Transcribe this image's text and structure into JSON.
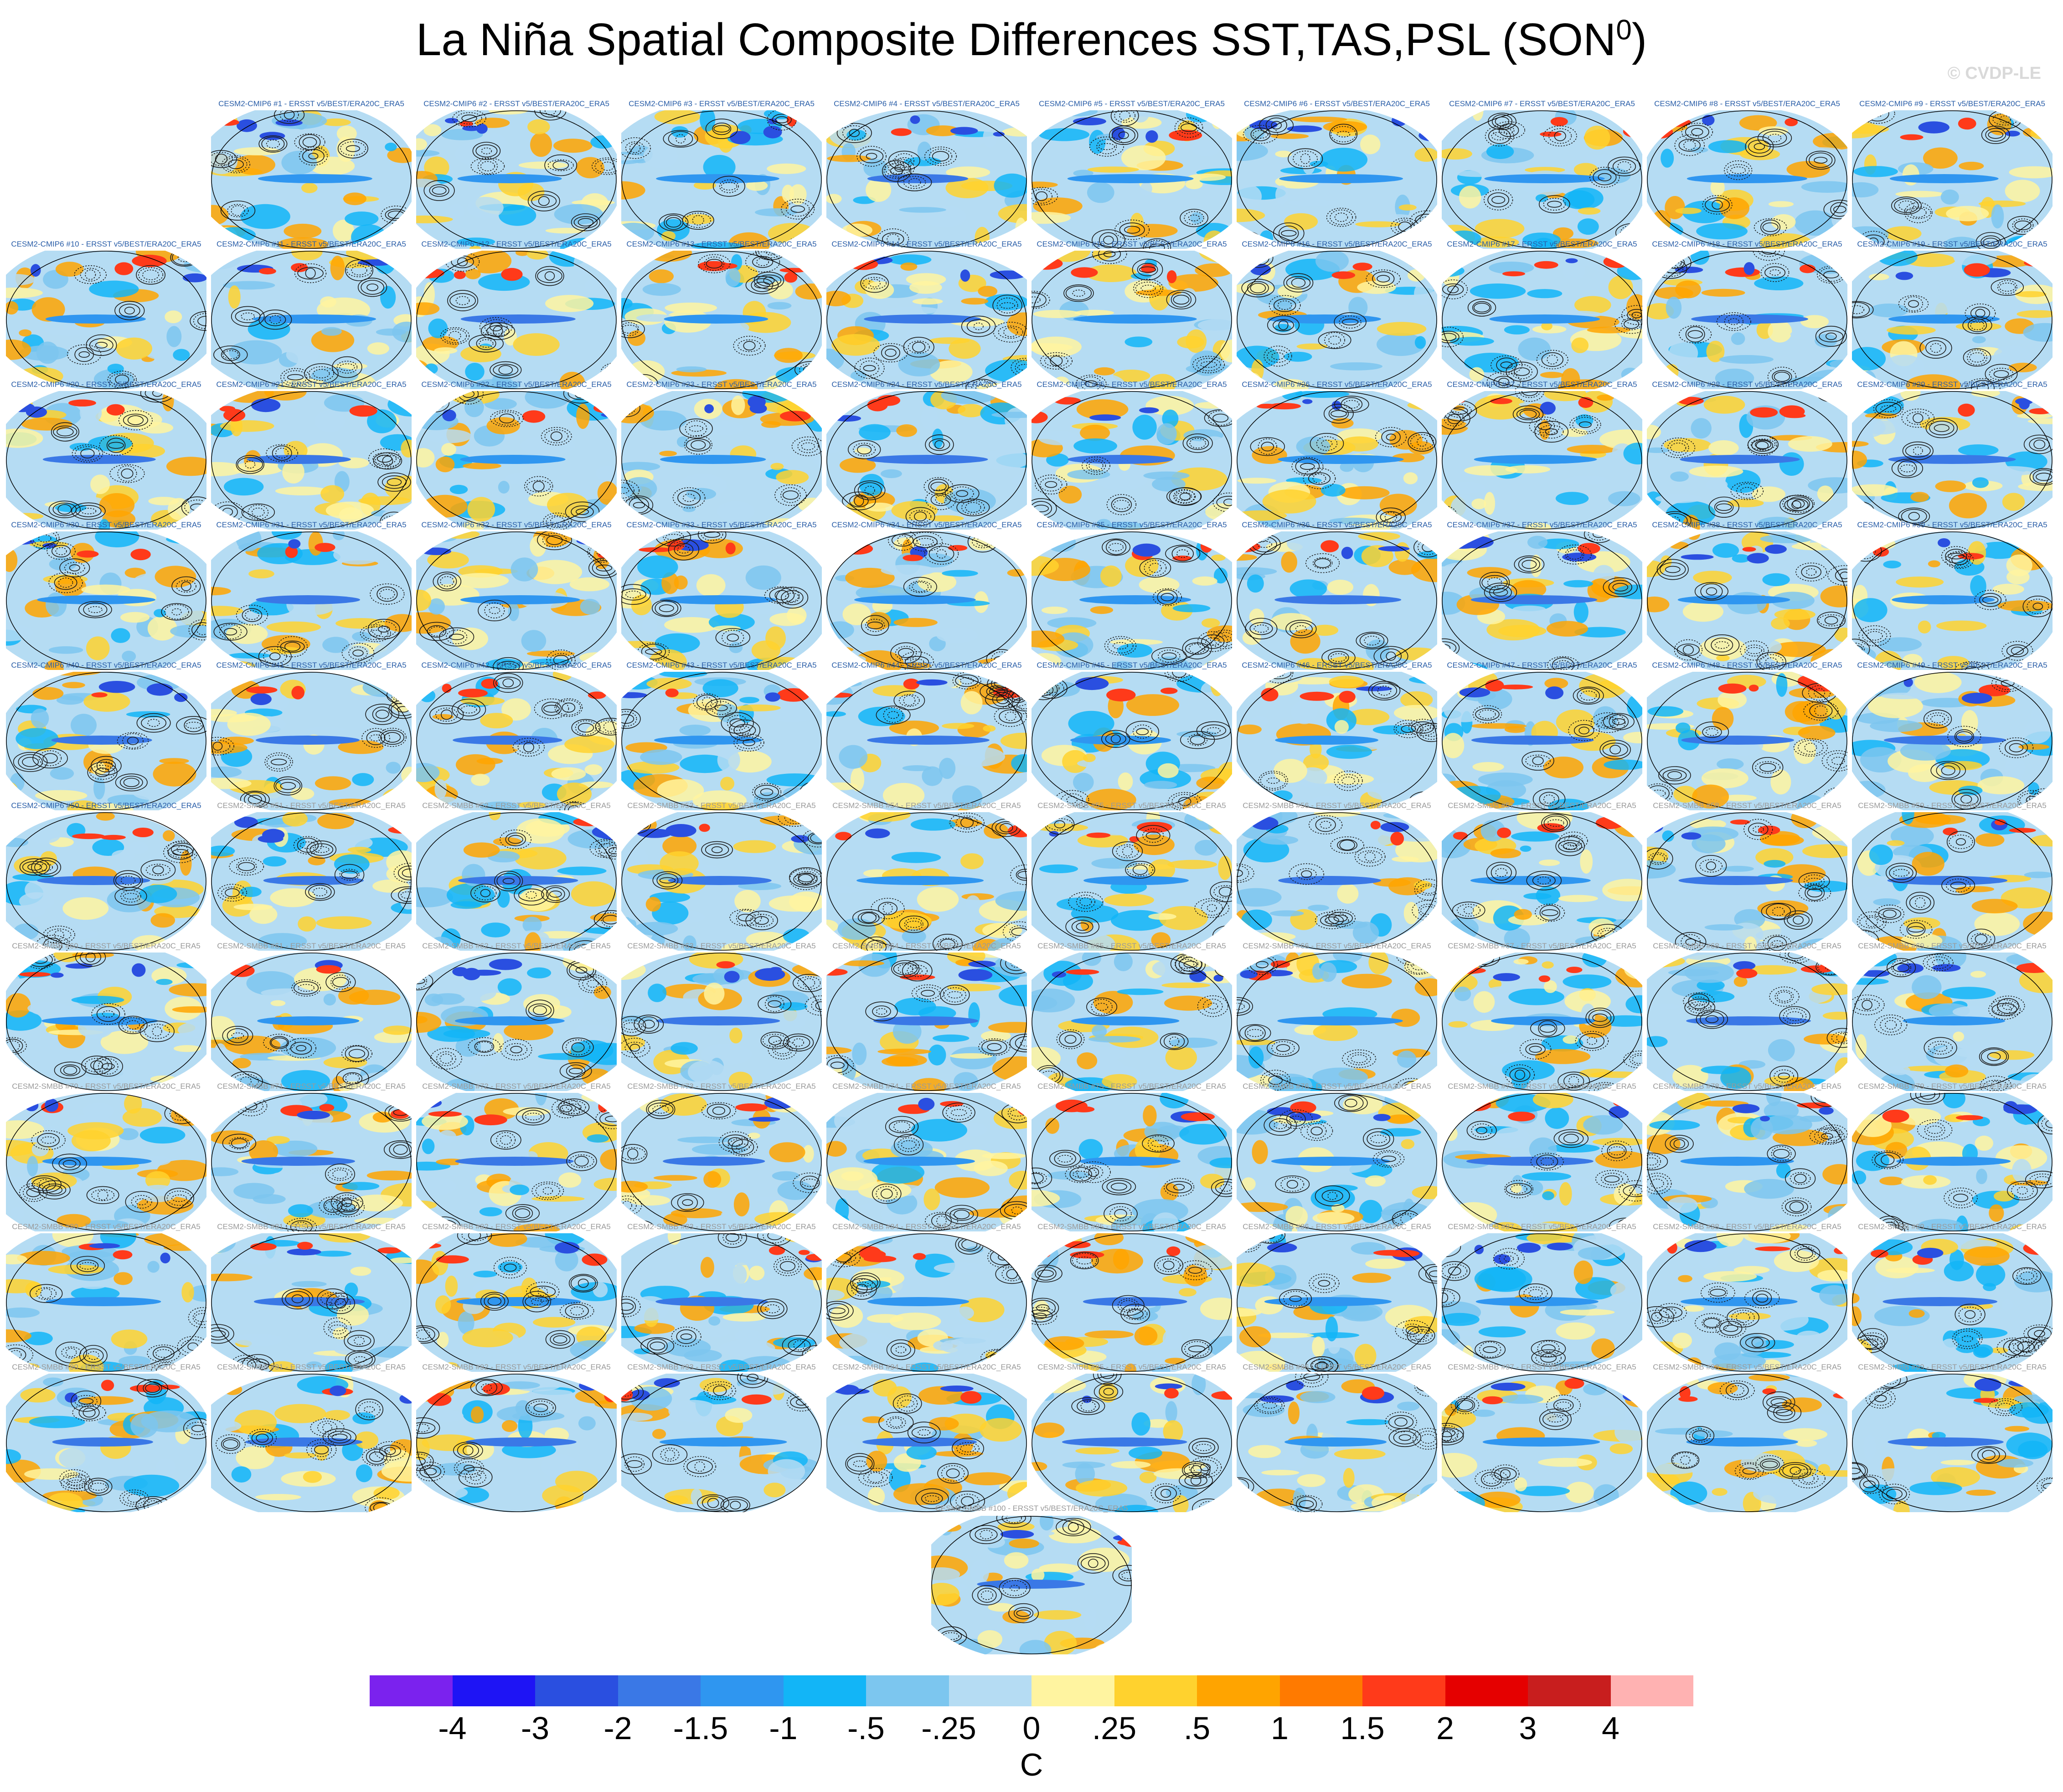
{
  "title_main": "La Niña Spatial Composite Differences SST,TAS,PSL (SON",
  "title_sup": "0",
  "title_end": ")",
  "copyright": "© CVDP-LE",
  "chart_data": {
    "type": "heatmap",
    "projection": "global map (Robinson-like ellipse)",
    "fields": [
      "SST",
      "TAS",
      "PSL (contours)"
    ],
    "season": "SON0",
    "units": "C",
    "panels_cmip6": [
      "CESM2-CMIP6 #1 - ERSST v5/BEST/ERA20C_ERA5",
      "CESM2-CMIP6 #2 - ERSST v5/BEST/ERA20C_ERA5",
      "CESM2-CMIP6 #3 - ERSST v5/BEST/ERA20C_ERA5",
      "CESM2-CMIP6 #4 - ERSST v5/BEST/ERA20C_ERA5",
      "CESM2-CMIP6 #5 - ERSST v5/BEST/ERA20C_ERA5",
      "CESM2-CMIP6 #6 - ERSST v5/BEST/ERA20C_ERA5",
      "CESM2-CMIP6 #7 - ERSST v5/BEST/ERA20C_ERA5",
      "CESM2-CMIP6 #8 - ERSST v5/BEST/ERA20C_ERA5",
      "CESM2-CMIP6 #9 - ERSST v5/BEST/ERA20C_ERA5",
      "CESM2-CMIP6 #10 - ERSST v5/BEST/ERA20C_ERA5",
      "CESM2-CMIP6 #11 - ERSST v5/BEST/ERA20C_ERA5",
      "CESM2-CMIP6 #12 - ERSST v5/BEST/ERA20C_ERA5",
      "CESM2-CMIP6 #13 - ERSST v5/BEST/ERA20C_ERA5",
      "CESM2-CMIP6 #14 - ERSST v5/BEST/ERA20C_ERA5",
      "CESM2-CMIP6 #15 - ERSST v5/BEST/ERA20C_ERA5",
      "CESM2-CMIP6 #16 - ERSST v5/BEST/ERA20C_ERA5",
      "CESM2-CMIP6 #17 - ERSST v5/BEST/ERA20C_ERA5",
      "CESM2-CMIP6 #18 - ERSST v5/BEST/ERA20C_ERA5",
      "CESM2-CMIP6 #19 - ERSST v5/BEST/ERA20C_ERA5",
      "CESM2-CMIP6 #20 - ERSST v5/BEST/ERA20C_ERA5",
      "CESM2-CMIP6 #21 - ERSST v5/BEST/ERA20C_ERA5",
      "CESM2-CMIP6 #22 - ERSST v5/BEST/ERA20C_ERA5",
      "CESM2-CMIP6 #23 - ERSST v5/BEST/ERA20C_ERA5",
      "CESM2-CMIP6 #24 - ERSST v5/BEST/ERA20C_ERA5",
      "CESM2-CMIP6 #25 - ERSST v5/BEST/ERA20C_ERA5",
      "CESM2-CMIP6 #26 - ERSST v5/BEST/ERA20C_ERA5",
      "CESM2-CMIP6 #27 - ERSST v5/BEST/ERA20C_ERA5",
      "CESM2-CMIP6 #28 - ERSST v5/BEST/ERA20C_ERA5",
      "CESM2-CMIP6 #29 - ERSST v5/BEST/ERA20C_ERA5",
      "CESM2-CMIP6 #30 - ERSST v5/BEST/ERA20C_ERA5",
      "CESM2-CMIP6 #31 - ERSST v5/BEST/ERA20C_ERA5",
      "CESM2-CMIP6 #32 - ERSST v5/BEST/ERA20C_ERA5",
      "CESM2-CMIP6 #33 - ERSST v5/BEST/ERA20C_ERA5",
      "CESM2-CMIP6 #34 - ERSST v5/BEST/ERA20C_ERA5",
      "CESM2-CMIP6 #35 - ERSST v5/BEST/ERA20C_ERA5",
      "CESM2-CMIP6 #36 - ERSST v5/BEST/ERA20C_ERA5",
      "CESM2-CMIP6 #37 - ERSST v5/BEST/ERA20C_ERA5",
      "CESM2-CMIP6 #38 - ERSST v5/BEST/ERA20C_ERA5",
      "CESM2-CMIP6 #39 - ERSST v5/BEST/ERA20C_ERA5",
      "CESM2-CMIP6 #40 - ERSST v5/BEST/ERA20C_ERA5",
      "CESM2-CMIP6 #41 - ERSST v5/BEST/ERA20C_ERA5",
      "CESM2-CMIP6 #42 - ERSST v5/BEST/ERA20C_ERA5",
      "CESM2-CMIP6 #43 - ERSST v5/BEST/ERA20C_ERA5",
      "CESM2-CMIP6 #44 - ERSST v5/BEST/ERA20C_ERA5",
      "CESM2-CMIP6 #45 - ERSST v5/BEST/ERA20C_ERA5",
      "CESM2-CMIP6 #46 - ERSST v5/BEST/ERA20C_ERA5",
      "CESM2-CMIP6 #47 - ERSST v5/BEST/ERA20C_ERA5",
      "CESM2-CMIP6 #48 - ERSST v5/BEST/ERA20C_ERA5",
      "CESM2-CMIP6 #49 - ERSST v5/BEST/ERA20C_ERA5",
      "CESM2-CMIP6 #50 - ERSST v5/BEST/ERA20C_ERA5"
    ],
    "panels_smbb": [
      "CESM2-SMBB #51 - ERSST v5/BEST/ERA20C_ERA5",
      "CESM2-SMBB #52 - ERSST v5/BEST/ERA20C_ERA5",
      "CESM2-SMBB #53 - ERSST v5/BEST/ERA20C_ERA5",
      "CESM2-SMBB #54 - ERSST v5/BEST/ERA20C_ERA5",
      "CESM2-SMBB #55 - ERSST v5/BEST/ERA20C_ERA5",
      "CESM2-SMBB #56 - ERSST v5/BEST/ERA20C_ERA5",
      "CESM2-SMBB #57 - ERSST v5/BEST/ERA20C_ERA5",
      "CESM2-SMBB #58 - ERSST v5/BEST/ERA20C_ERA5",
      "CESM2-SMBB #59 - ERSST v5/BEST/ERA20C_ERA5",
      "CESM2-SMBB #60 - ERSST v5/BEST/ERA20C_ERA5",
      "CESM2-SMBB #61 - ERSST v5/BEST/ERA20C_ERA5",
      "CESM2-SMBB #62 - ERSST v5/BEST/ERA20C_ERA5",
      "CESM2-SMBB #63 - ERSST v5/BEST/ERA20C_ERA5",
      "CESM2-SMBB #64 - ERSST v5/BEST/ERA20C_ERA5",
      "CESM2-SMBB #65 - ERSST v5/BEST/ERA20C_ERA5",
      "CESM2-SMBB #66 - ERSST v5/BEST/ERA20C_ERA5",
      "CESM2-SMBB #67 - ERSST v5/BEST/ERA20C_ERA5",
      "CESM2-SMBB #68 - ERSST v5/BEST/ERA20C_ERA5",
      "CESM2-SMBB #69 - ERSST v5/BEST/ERA20C_ERA5",
      "CESM2-SMBB #70 - ERSST v5/BEST/ERA20C_ERA5",
      "CESM2-SMBB #71 - ERSST v5/BEST/ERA20C_ERA5",
      "CESM2-SMBB #72 - ERSST v5/BEST/ERA20C_ERA5",
      "CESM2-SMBB #73 - ERSST v5/BEST/ERA20C_ERA5",
      "CESM2-SMBB #74 - ERSST v5/BEST/ERA20C_ERA5",
      "CESM2-SMBB #75 - ERSST v5/BEST/ERA20C_ERA5",
      "CESM2-SMBB #76 - ERSST v5/BEST/ERA20C_ERA5",
      "CESM2-SMBB #77 - ERSST v5/BEST/ERA20C_ERA5",
      "CESM2-SMBB #78 - ERSST v5/BEST/ERA20C_ERA5",
      "CESM2-SMBB #79 - ERSST v5/BEST/ERA20C_ERA5",
      "CESM2-SMBB #80 - ERSST v5/BEST/ERA20C_ERA5",
      "CESM2-SMBB #81 - ERSST v5/BEST/ERA20C_ERA5",
      "CESM2-SMBB #82 - ERSST v5/BEST/ERA20C_ERA5",
      "CESM2-SMBB #83 - ERSST v5/BEST/ERA20C_ERA5",
      "CESM2-SMBB #84 - ERSST v5/BEST/ERA20C_ERA5",
      "CESM2-SMBB #85 - ERSST v5/BEST/ERA20C_ERA5",
      "CESM2-SMBB #86 - ERSST v5/BEST/ERA20C_ERA5",
      "CESM2-SMBB #87 - ERSST v5/BEST/ERA20C_ERA5",
      "CESM2-SMBB #88 - ERSST v5/BEST/ERA20C_ERA5",
      "CESM2-SMBB #89 - ERSST v5/BEST/ERA20C_ERA5",
      "CESM2-SMBB #90 - ERSST v5/BEST/ERA20C_ERA5",
      "CESM2-SMBB #91 - ERSST v5/BEST/ERA20C_ERA5",
      "CESM2-SMBB #92 - ERSST v5/BEST/ERA20C_ERA5",
      "CESM2-SMBB #93 - ERSST v5/BEST/ERA20C_ERA5",
      "CESM2-SMBB #94 - ERSST v5/BEST/ERA20C_ERA5",
      "CESM2-SMBB #95 - ERSST v5/BEST/ERA20C_ERA5",
      "CESM2-SMBB #96 - ERSST v5/BEST/ERA20C_ERA5",
      "CESM2-SMBB #97 - ERSST v5/BEST/ERA20C_ERA5",
      "CESM2-SMBB #98 - ERSST v5/BEST/ERA20C_ERA5",
      "CESM2-SMBB #99 - ERSST v5/BEST/ERA20C_ERA5",
      "CESM2-SMBB #100 - ERSST v5/BEST/ERA20C_ERA5"
    ],
    "colorbar": {
      "levels": [
        "-4",
        "-3",
        "-2",
        "-1.5",
        "-1",
        "-.5",
        "-.25",
        "0",
        ".25",
        ".5",
        "1",
        "1.5",
        "2",
        "3",
        "4"
      ],
      "colors": [
        "#7b22ee",
        "#1e14f5",
        "#2a4fe0",
        "#3a78e6",
        "#2f96f0",
        "#12b5f7",
        "#7cc6ef",
        "#b5dcf3",
        "#fff4a0",
        "#ffd22e",
        "#ffa400",
        "#ff7a00",
        "#ff3a1a",
        "#e50000",
        "#c81e1e",
        "#ffb2b2"
      ],
      "label": "C"
    }
  }
}
